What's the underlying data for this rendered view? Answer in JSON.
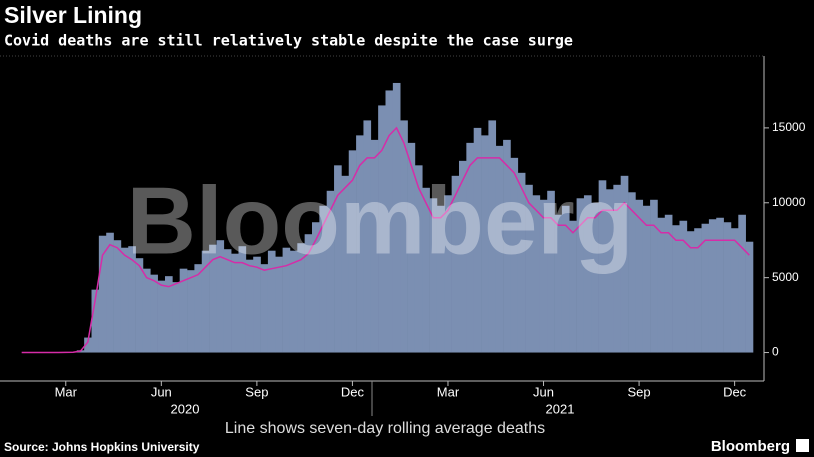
{
  "chart_data": {
    "type": "bar_line",
    "title": "Silver Lining",
    "subtitle": "Covid deaths are still relatively stable despite the case surge",
    "note": "Line shows seven-day rolling average deaths",
    "source": "Source: Johns Hopkins University",
    "brand": "Bloomberg",
    "watermark": "Bloomberg",
    "year_labels": [
      "2020",
      "2021"
    ],
    "categories": [
      null,
      null,
      null,
      null,
      null,
      null,
      "Mar",
      null,
      null,
      null,
      null,
      null,
      null,
      null,
      null,
      null,
      null,
      null,
      null,
      "Jun",
      null,
      null,
      null,
      null,
      null,
      null,
      null,
      null,
      null,
      null,
      null,
      null,
      "Sep",
      null,
      null,
      null,
      null,
      null,
      null,
      null,
      null,
      null,
      null,
      null,
      null,
      "Dec",
      null,
      null,
      null,
      null,
      null,
      null,
      null,
      null,
      null,
      null,
      null,
      null,
      "Mar",
      null,
      null,
      null,
      null,
      null,
      null,
      null,
      null,
      null,
      null,
      null,
      null,
      "Jun",
      null,
      null,
      null,
      null,
      null,
      null,
      null,
      null,
      null,
      null,
      null,
      null,
      "Sep",
      null,
      null,
      null,
      null,
      null,
      null,
      null,
      null,
      null,
      null,
      null,
      null,
      "Dec",
      null,
      null
    ],
    "bars": {
      "color": "#7b8fb2",
      "values": [
        0,
        0,
        0,
        0,
        1,
        2,
        12,
        30,
        150,
        1000,
        4200,
        7800,
        8000,
        7500,
        7000,
        7100,
        6300,
        5600,
        5200,
        4800,
        5100,
        4700,
        5600,
        5500,
        5900,
        6800,
        7200,
        7500,
        6900,
        6600,
        7100,
        6200,
        6400,
        5900,
        6800,
        6400,
        7000,
        6800,
        7300,
        7900,
        8700,
        9800,
        10800,
        12500,
        11800,
        13500,
        14500,
        15500,
        14200,
        16500,
        17500,
        18000,
        15500,
        14000,
        12500,
        11000,
        10300,
        9800,
        10500,
        11800,
        12800,
        14000,
        15000,
        14500,
        15500,
        13800,
        14200,
        13000,
        12000,
        11200,
        10500,
        10200,
        10800,
        9200,
        9800,
        8800,
        10300,
        10500,
        10000,
        11500,
        10900,
        11200,
        11800,
        10700,
        10200,
        9800,
        10200,
        9000,
        9200,
        8500,
        8800,
        8100,
        8300,
        8600,
        8900,
        9000,
        8700,
        8300,
        9200,
        7400
      ]
    },
    "line": {
      "color": "#d62ca8",
      "values": [
        0,
        0,
        0,
        0,
        0,
        2,
        10,
        20,
        100,
        700,
        3500,
        6500,
        7200,
        7000,
        6500,
        6200,
        5800,
        5000,
        4800,
        4500,
        4400,
        4600,
        4800,
        5000,
        5200,
        5700,
        6200,
        6400,
        6200,
        6000,
        6000,
        5800,
        5700,
        5500,
        5600,
        5700,
        5800,
        6000,
        6200,
        6600,
        7500,
        8500,
        9500,
        10500,
        11000,
        11500,
        12500,
        13000,
        13000,
        13500,
        14500,
        15000,
        14000,
        12500,
        11000,
        10000,
        9000,
        9000,
        9500,
        10500,
        11500,
        12500,
        13000,
        13000,
        13000,
        13000,
        12500,
        12000,
        11000,
        10000,
        9500,
        9000,
        9000,
        8500,
        8500,
        8000,
        8500,
        9000,
        9000,
        9500,
        9500,
        9500,
        10000,
        9500,
        9000,
        8500,
        8500,
        8000,
        8000,
        7500,
        7500,
        7000,
        7000,
        7500,
        7500,
        7500,
        7500,
        7500,
        7000,
        6500
      ]
    },
    "ylim": [
      -1900,
      19800
    ],
    "yticks": [
      0,
      5000,
      10000,
      15000
    ]
  }
}
